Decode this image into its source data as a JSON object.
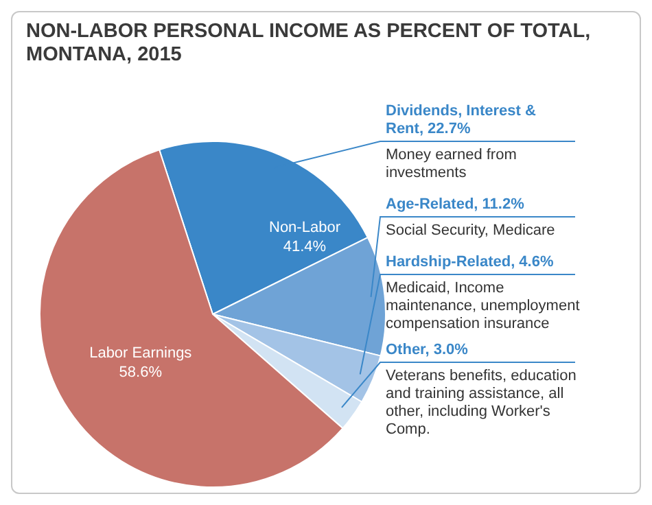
{
  "chart_data": {
    "type": "pie",
    "title": "NON-LABOR PERSONAL INCOME AS PERCENT OF TOTAL, MONTANA, 2015",
    "categories": [
      "Dividends, Interest & Rent, 22.7%",
      "Age-Related, 11.2%",
      "Hardship-Related, 4.6%",
      "Other, 3.0%",
      "Labor Earnings"
    ],
    "values": [
      22.7,
      11.2,
      4.6,
      3.0,
      58.6
    ],
    "value_labels": [
      null,
      null,
      null,
      null,
      "58.6%"
    ],
    "colors": [
      "#3a87c8",
      "#6fa3d6",
      "#a3c3e6",
      "#d2e3f3",
      "#c7736a"
    ],
    "annotations": [
      "Non-Labor\n41.4%",
      "Money earned from investments",
      "Social Security, Medicare",
      "Medicaid, Income maintenance, unemployment compensation insurance",
      "Veterans benefits, education and training assistance, all other, including Worker's Comp."
    ],
    "legend": false
  }
}
